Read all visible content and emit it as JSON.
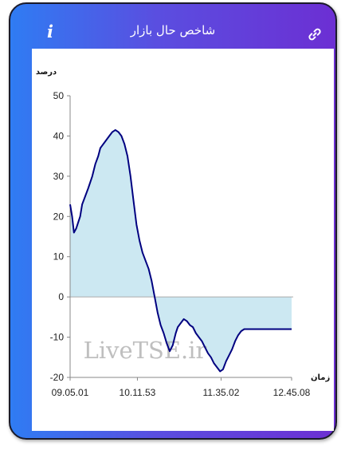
{
  "header": {
    "title": "شاخص حال بازار",
    "info_icon": "info-icon",
    "link_icon": "link-icon",
    "gradient": [
      "#2f7cf3",
      "#6c2fd3"
    ]
  },
  "chart_data": {
    "type": "area",
    "title": "",
    "ylabel": "درصد",
    "xlabel": "زمان",
    "ylim": [
      -20,
      50
    ],
    "yticks": [
      -20,
      -10,
      0,
      10,
      20,
      30,
      40,
      50
    ],
    "xlim": [
      "09.05.01",
      "12.45.08"
    ],
    "xticks": [
      "09.05.01",
      "10.11.53",
      "11.35.02",
      "12.45.08"
    ],
    "grid": false,
    "watermark": "LiveTSE.ir",
    "line_color": "#000080",
    "fill_color": "#cce8f2",
    "series": [
      {
        "x": [
          "09.05.01",
          "09.07.00",
          "09.08.50",
          "09.11.00",
          "09.13.00",
          "09.15.00",
          "09.17.00",
          "09.20.00",
          "09.23.00",
          "09.27.00",
          "09.30.00",
          "09.33.00",
          "09.35.00",
          "09.38.00",
          "09.41.00",
          "09.44.00",
          "09.47.00",
          "09.50.00",
          "09.53.00",
          "09.56.00",
          "09.59.00",
          "10.02.00",
          "10.05.00",
          "10.08.00",
          "10.11.00",
          "10.14.00",
          "10.17.00",
          "10.20.00",
          "10.23.00",
          "10.26.00",
          "10.29.00",
          "10.32.00",
          "10.35.00",
          "10.38.00",
          "10.41.00",
          "10.44.00",
          "10.47.00",
          "10.50.00",
          "10.52.00",
          "10.55.00",
          "10.58.00",
          "11.01.00",
          "11.04.00",
          "11.07.00",
          "11.10.00",
          "11.13.00",
          "11.16.00",
          "11.19.00",
          "11.22.00",
          "11.25.00",
          "11.28.00",
          "11.31.00",
          "11.34.00",
          "11.37.00",
          "11.40.00",
          "11.43.00",
          "11.46.00",
          "11.49.00",
          "11.52.00",
          "11.55.00",
          "11.58.00",
          "12.01.00",
          "12.04.00",
          "12.07.00",
          "12.10.00",
          "12.13.00",
          "12.16.00",
          "12.19.00",
          "12.25.00",
          "12.31.00",
          "12.38.00",
          "12.45.08"
        ],
        "values": [
          23,
          20,
          16,
          17,
          18.5,
          20,
          23,
          25,
          27,
          30,
          33,
          35,
          37,
          38,
          39,
          40,
          41,
          41.5,
          41,
          40,
          38,
          35,
          30,
          24,
          18,
          14,
          11,
          9,
          7,
          4,
          0,
          -4,
          -7,
          -9,
          -11.5,
          -13.5,
          -12,
          -9,
          -7.5,
          -6.5,
          -5.5,
          -6,
          -7,
          -7.5,
          -9,
          -10,
          -11,
          -12.5,
          -14,
          -15,
          -16.5,
          -17.5,
          -18.5,
          -18,
          -16,
          -14.5,
          -13,
          -11,
          -9.5,
          -8.5,
          -8,
          -8,
          -8,
          -8,
          -8,
          -8,
          -8,
          -8,
          -8,
          -8,
          -8,
          -8
        ]
      }
    ]
  }
}
